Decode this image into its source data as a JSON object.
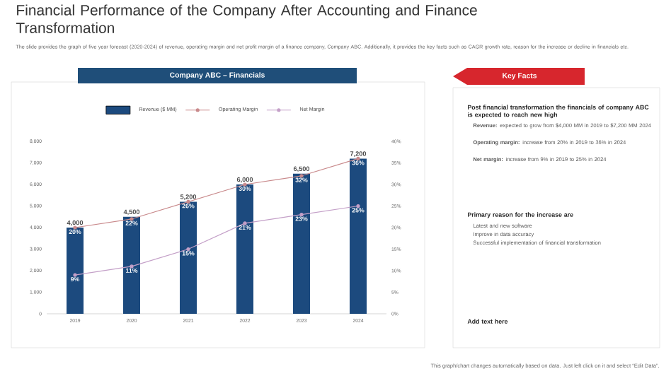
{
  "chart_data": {
    "type": "bar",
    "title": "Financial Performance of the Company After Accounting and Finance Transformation",
    "subtitle": "The slide provides the graph of five year forecast (2020-2024) of revenue, operating margin and net profit margin of a finance company, Company ABC. Additionally, it provides the key facts such as CAGR growth rate, reason for the increase or decline in financials etc.",
    "categories": [
      "2019",
      "2020",
      "2021",
      "2022",
      "2023",
      "2024"
    ],
    "series": [
      {
        "name": "Revenue ($ MM)",
        "color": "#1c4a7e",
        "values": [
          4000,
          4500,
          5200,
          6000,
          6500,
          7200
        ],
        "value_labels": [
          "4,000",
          "4,500",
          "5,200",
          "6,000",
          "6,500",
          "7,200"
        ]
      },
      {
        "name": "Operating Margin",
        "type": "line",
        "axis": "y2",
        "color": "#c98a8c",
        "values": [
          20,
          22,
          26,
          30,
          32,
          36
        ],
        "value_labels": [
          "20%",
          "22%",
          "26%",
          "30%",
          "32%",
          "36%"
        ]
      },
      {
        "name": "Net Margin",
        "type": "line",
        "axis": "y2",
        "color": "#c4a0c8",
        "values": [
          9,
          11,
          15,
          21,
          23,
          25
        ],
        "value_labels": [
          "9%",
          "11%",
          "15%",
          "21%",
          "23%",
          "25%"
        ]
      }
    ],
    "ylim": [
      0,
      8000
    ],
    "yticks": [
      0,
      {
        "value": 1000,
        "label": "1,000"
      },
      {
        "value": 2000,
        "label": "2,000"
      },
      {
        "value": 3000,
        "label": "3,000"
      },
      {
        "value": 4000,
        "label": "4,000"
      },
      {
        "value": 5000,
        "label": "5,000"
      },
      {
        "value": 6000,
        "label": "6,000"
      },
      {
        "value": 7000,
        "label": "7,000"
      },
      {
        "value": 8000,
        "label": "8,000"
      }
    ],
    "y2lim": [
      0,
      40
    ],
    "y2ticks": [
      {
        "value": 0,
        "label": "0%"
      },
      {
        "value": 5,
        "label": "5%"
      },
      {
        "value": 10,
        "label": "10%"
      },
      {
        "value": 15,
        "label": "15%"
      },
      {
        "value": 20,
        "label": "20%"
      },
      {
        "value": 25,
        "label": "25%"
      },
      {
        "value": 30,
        "label": "30%"
      },
      {
        "value": 35,
        "label": "35%"
      },
      {
        "value": 40,
        "label": "40%"
      }
    ],
    "marker": "circle",
    "line_style": "solid",
    "legend": "top",
    "annotations": [
      "Company ABC – Financials",
      "Key Facts",
      "Post financial transformation the financials of company ABC is expected to reach new high",
      "**Revenue:** expected to grow from $4,000 MM in 2019 to $7,200 MM 2024",
      "**Operating margin:** increase from 20% in 2019 to 36% in 2024",
      "**Net margin:** increase from 9% in 2019 to 25% in 2024",
      "Primary reason for the increase are",
      "Latest and new software",
      "Improve in data accuracy",
      "Successful implementation of financial transformation",
      "Add text here",
      "This graph/chart changes automatically based on data. Just left click on it and select “Edit Data”."
    ]
  }
}
